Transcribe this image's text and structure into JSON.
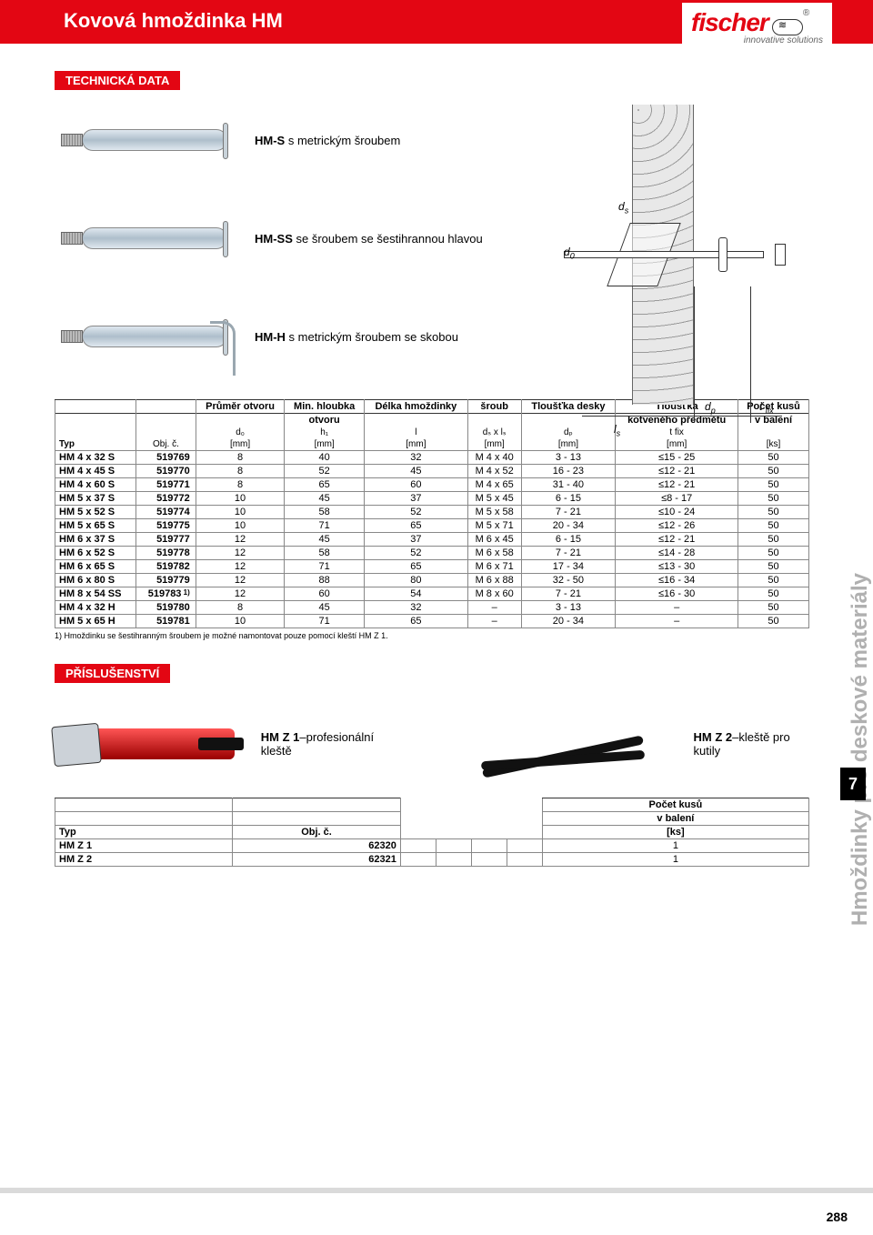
{
  "header": {
    "title": "Kovová hmoždinka HM",
    "logo_main": "fischer",
    "logo_reg": "®",
    "logo_sub": "innovative solutions"
  },
  "side": {
    "tab_text": "Hmoždinky pro deskové materiály",
    "section_number": "7"
  },
  "sections": {
    "tech_data": "TECHNICKÁ DATA",
    "accessories": "PŘÍSLUŠENSTVÍ"
  },
  "products": [
    {
      "code": "HM-S",
      "desc": " s metrickým šroubem"
    },
    {
      "code": "HM-SS",
      "desc": " se šroubem se šestihrannou hlavou"
    },
    {
      "code": "HM-H",
      "desc": " s metrickým šroubem se skobou"
    }
  ],
  "diagram_labels": {
    "ds": "d",
    "ds_sub": "s",
    "d0": "d",
    "d0_sub": "0",
    "ls": "l",
    "ls_sub": "s",
    "dp": "d",
    "dp_sub": "p",
    "tfix": "t ",
    "tfix_sub": "fix"
  },
  "table1": {
    "headers_top": [
      "",
      "",
      "Průměr otvoru",
      "Min. hloubka",
      "Délka hmoždinky",
      "šroub",
      "Tloušťka desky",
      "Tloušťka",
      "Počet kusů"
    ],
    "headers_top2": [
      "",
      "",
      "",
      "otvoru",
      "",
      "",
      "",
      "kotveného předmětu",
      "v balení"
    ],
    "headers_sym": [
      "",
      "",
      "d₀",
      "h₁",
      "l",
      "dₛ x lₛ",
      "dₚ",
      "t fix",
      ""
    ],
    "headers_unit": [
      "Typ",
      "Obj. č.",
      "[mm]",
      "[mm]",
      "[mm]",
      "[mm]",
      "[mm]",
      "[mm]",
      "[ks]"
    ],
    "rows": [
      [
        "HM 4 x 32 S",
        "519769",
        "8",
        "40",
        "32",
        "M 4 x 40",
        "3 - 13",
        "≤15 - 25",
        "50"
      ],
      [
        "HM 4 x 45 S",
        "519770",
        "8",
        "52",
        "45",
        "M 4 x 52",
        "16 - 23",
        "≤12 - 21",
        "50"
      ],
      [
        "HM 4 x 60 S",
        "519771",
        "8",
        "65",
        "60",
        "M 4 x 65",
        "31 - 40",
        "≤12 - 21",
        "50"
      ],
      [
        "HM 5 x 37 S",
        "519772",
        "10",
        "45",
        "37",
        "M 5 x 45",
        "6 - 15",
        "≤8 - 17",
        "50"
      ],
      [
        "HM 5 x 52 S",
        "519774",
        "10",
        "58",
        "52",
        "M 5 x 58",
        "7 - 21",
        "≤10 - 24",
        "50"
      ],
      [
        "HM 5 x 65 S",
        "519775",
        "10",
        "71",
        "65",
        "M 5 x 71",
        "20 - 34",
        "≤12 - 26",
        "50"
      ],
      [
        "HM 6 x 37 S",
        "519777",
        "12",
        "45",
        "37",
        "M 6 x 45",
        "6 - 15",
        "≤12 - 21",
        "50"
      ],
      [
        "HM 6 x 52 S",
        "519778",
        "12",
        "58",
        "52",
        "M 6 x 58",
        "7 - 21",
        "≤14 - 28",
        "50"
      ],
      [
        "HM 6 x 65 S",
        "519782",
        "12",
        "71",
        "65",
        "M 6 x 71",
        "17 - 34",
        "≤13 - 30",
        "50"
      ],
      [
        "HM 6 x 80 S",
        "519779",
        "12",
        "88",
        "80",
        "M 6 x 88",
        "32 - 50",
        "≤16 - 34",
        "50"
      ],
      [
        "HM 8 x 54 SS",
        "519783",
        "12",
        "60",
        "54",
        "M 8 x 60",
        "7 - 21",
        "≤16 - 30",
        "50"
      ],
      [
        "HM 4 x 32 H",
        "519780",
        "8",
        "45",
        "32",
        "–",
        "3 - 13",
        "–",
        "50"
      ],
      [
        "HM 5 x 65 H",
        "519781",
        "10",
        "71",
        "65",
        "–",
        "20 - 34",
        "–",
        "50"
      ]
    ],
    "footnote_row_index": 10,
    "footnote_marker": "1)",
    "footnote_text": "1) Hmoždinku se šestihranným šroubem je možné namontovat pouze pomocí kleští HM Z 1."
  },
  "accessories": [
    {
      "code": "HM Z 1",
      "desc": "–profesionální kleště"
    },
    {
      "code": "HM Z 2",
      "desc": "–kleště pro kutily"
    }
  ],
  "table2": {
    "headers_top": [
      "",
      "",
      "",
      "",
      "",
      "",
      "Počet kusů"
    ],
    "headers_top2": [
      "",
      "",
      "",
      "",
      "",
      "",
      "v balení"
    ],
    "headers_unit": [
      "Typ",
      "Obj. č.",
      "",
      "",
      "",
      "",
      "[ks]"
    ],
    "rows": [
      [
        "HM Z 1",
        "62320",
        "",
        "",
        "",
        "",
        "1"
      ],
      [
        "HM Z 2",
        "62321",
        "",
        "",
        "",
        "",
        "1"
      ]
    ]
  },
  "page_number": "288",
  "colors": {
    "brand_red": "#e30613",
    "grey": "#b0b0b0",
    "border": "#888888"
  }
}
